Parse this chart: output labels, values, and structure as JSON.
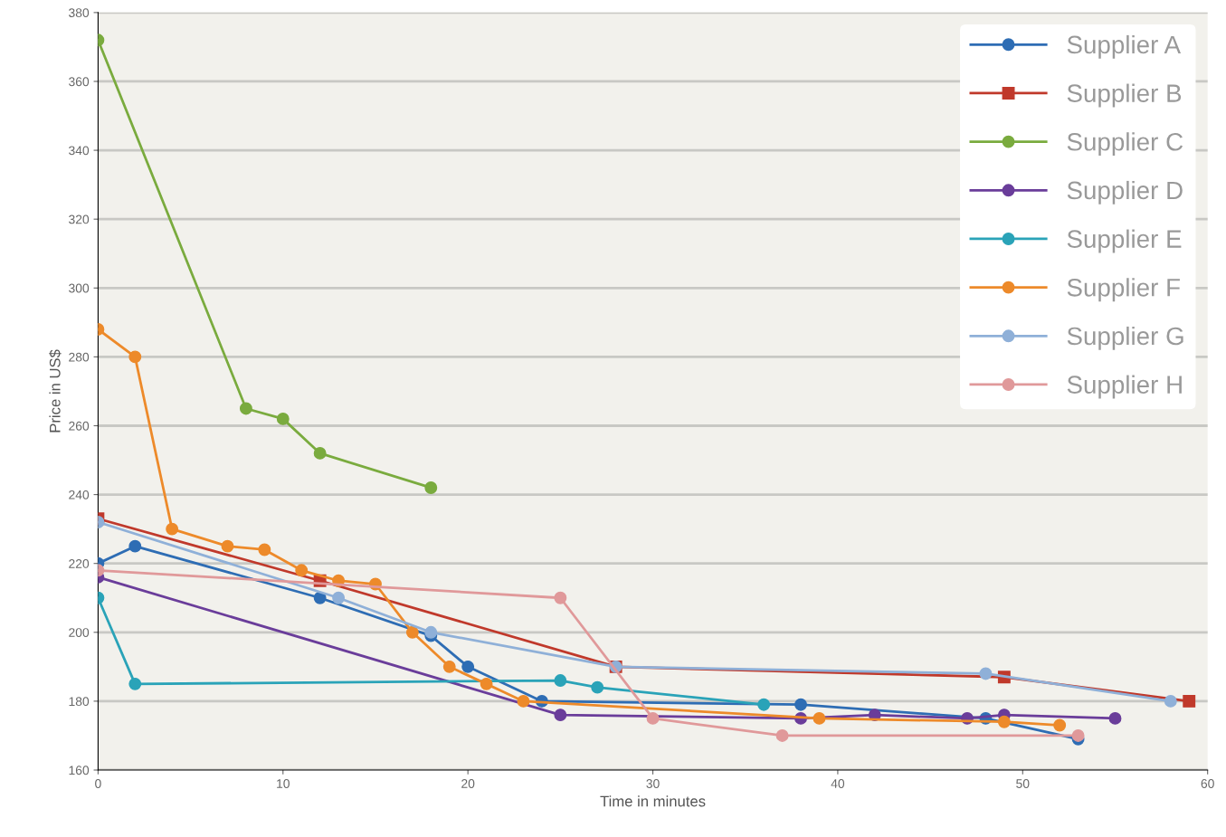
{
  "chart_data": {
    "type": "line",
    "xlabel": "Time in minutes",
    "ylabel": "Price in US$",
    "xlim": [
      0,
      60
    ],
    "xticks": [
      0,
      10,
      20,
      30,
      40,
      50,
      60
    ],
    "ylim": [
      160,
      380
    ],
    "yticks": [
      160,
      180,
      200,
      220,
      240,
      260,
      280,
      300,
      320,
      340,
      360,
      380
    ],
    "grid": "y",
    "legend": "top right",
    "marker": "circle",
    "line_style": "solid",
    "series": [
      {
        "name": "Supplier A",
        "color": "#2e6db4",
        "x": [
          0,
          2,
          12,
          18,
          20,
          24,
          38,
          48,
          53
        ],
        "values": [
          220,
          225,
          210,
          199,
          190,
          180,
          179,
          175,
          169
        ]
      },
      {
        "name": "Supplier B",
        "color": "#c0392b",
        "marker": "square",
        "x": [
          0,
          12,
          28,
          49,
          59
        ],
        "values": [
          233,
          215,
          190,
          187,
          180
        ]
      },
      {
        "name": "Supplier C",
        "color": "#7aab3e",
        "x": [
          0,
          8,
          10,
          12,
          18
        ],
        "values": [
          372,
          265,
          262,
          252,
          242
        ]
      },
      {
        "name": "Supplier D",
        "color": "#6a3d9a",
        "x": [
          0,
          25,
          38,
          42,
          47,
          49,
          55
        ],
        "values": [
          216,
          176,
          175,
          176,
          175,
          176,
          175
        ]
      },
      {
        "name": "Supplier E",
        "color": "#2aa3b8",
        "x": [
          0,
          2,
          25,
          27,
          36
        ],
        "values": [
          210,
          185,
          186,
          184,
          179
        ]
      },
      {
        "name": "Supplier F",
        "color": "#ed8a2a",
        "x": [
          0,
          2,
          4,
          7,
          9,
          11,
          13,
          15,
          17,
          19,
          21,
          23,
          39,
          49,
          52
        ],
        "values": [
          288,
          280,
          230,
          225,
          224,
          218,
          215,
          214,
          200,
          190,
          185,
          180,
          175,
          174,
          173
        ]
      },
      {
        "name": "Supplier G",
        "color": "#8fb0d8",
        "x": [
          0,
          13,
          18,
          28,
          48,
          58
        ],
        "values": [
          232,
          210,
          200,
          190,
          188,
          180
        ]
      },
      {
        "name": "Supplier H",
        "color": "#e0999a",
        "x": [
          0,
          25,
          30,
          37,
          53
        ],
        "values": [
          218,
          210,
          175,
          170,
          170
        ]
      }
    ]
  }
}
